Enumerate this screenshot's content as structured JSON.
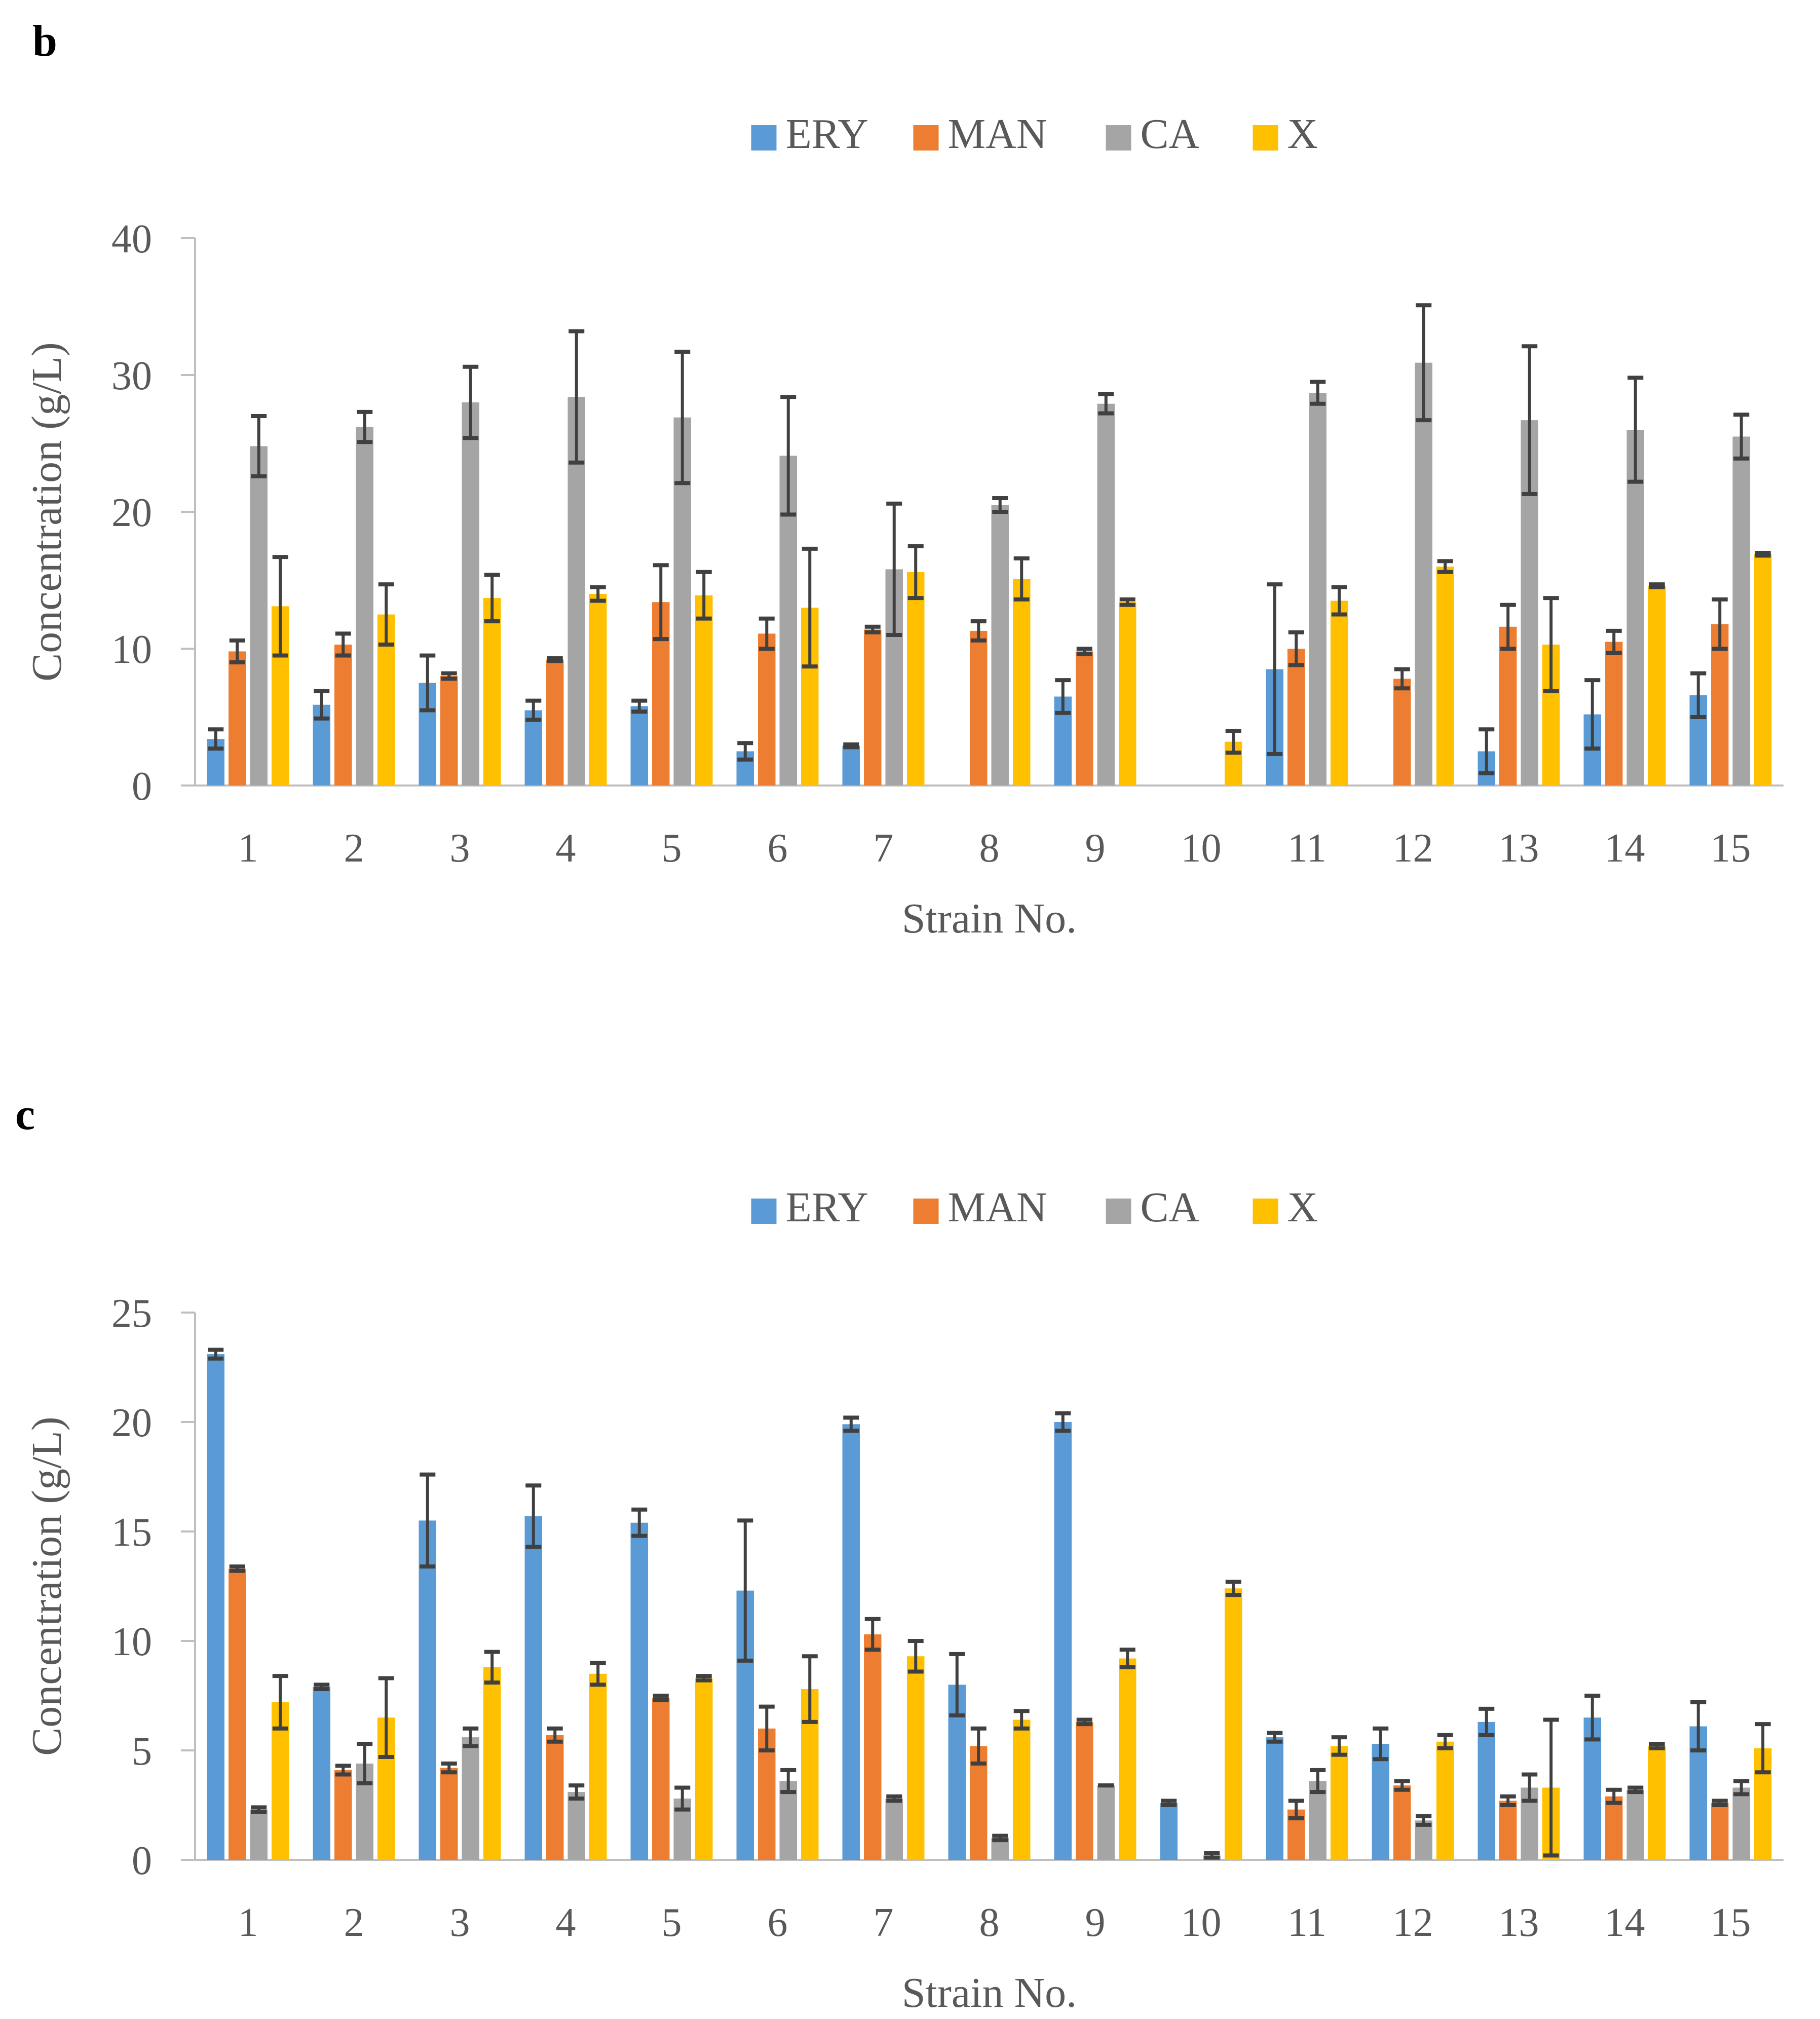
{
  "colors": {
    "ERY": "#5b9bd5",
    "MAN": "#ed7d31",
    "CA": "#a5a5a5",
    "X": "#ffc000",
    "axis": "#bfbfbf",
    "text": "#595959",
    "errorbar": "#404040"
  },
  "chart_data": [
    {
      "panel_label": "b",
      "type": "bar",
      "xlabel": "Strain No.",
      "ylabel": "Concentration (g/L)",
      "ylim": [
        0,
        40
      ],
      "yticks": [
        "0",
        "10",
        "20",
        "30",
        "40"
      ],
      "grid": false,
      "legend": "top-center",
      "categories": [
        "1",
        "2",
        "3",
        "4",
        "5",
        "6",
        "7",
        "8",
        "9",
        "10",
        "11",
        "12",
        "13",
        "14",
        "15"
      ],
      "series": [
        {
          "name": "ERY",
          "values": [
            3.4,
            5.9,
            7.5,
            5.5,
            5.8,
            2.5,
            2.9,
            0,
            6.5,
            0,
            8.5,
            0,
            2.5,
            5.2,
            6.6
          ],
          "errors": [
            0.7,
            1.0,
            2.0,
            0.7,
            0.4,
            0.6,
            0.1,
            0,
            1.2,
            0,
            6.2,
            0,
            1.6,
            2.5,
            1.6
          ]
        },
        {
          "name": "MAN",
          "values": [
            9.8,
            10.3,
            8.0,
            9.2,
            13.4,
            11.1,
            11.4,
            11.3,
            9.8,
            0,
            10.0,
            7.8,
            11.6,
            10.5,
            11.8
          ],
          "errors": [
            0.8,
            0.8,
            0.2,
            0.1,
            2.7,
            1.1,
            0.2,
            0.7,
            0.2,
            0,
            1.2,
            0.7,
            1.6,
            0.8,
            1.8
          ]
        },
        {
          "name": "CA",
          "values": [
            24.8,
            26.2,
            28.0,
            28.4,
            26.9,
            24.1,
            15.8,
            20.5,
            27.9,
            0,
            28.7,
            30.9,
            26.7,
            26.0,
            25.5
          ],
          "errors": [
            2.2,
            1.1,
            2.6,
            4.8,
            4.8,
            4.3,
            4.8,
            0.5,
            0.7,
            0,
            0.8,
            4.2,
            5.4,
            3.8,
            1.6
          ]
        },
        {
          "name": "X",
          "values": [
            13.1,
            12.5,
            13.7,
            14.0,
            13.9,
            13.0,
            15.6,
            15.1,
            13.4,
            3.2,
            13.5,
            16.0,
            10.3,
            14.6,
            16.9
          ],
          "errors": [
            3.6,
            2.2,
            1.7,
            0.5,
            1.7,
            4.3,
            1.9,
            1.5,
            0.2,
            0.8,
            1.0,
            0.4,
            3.4,
            0.1,
            0.1
          ]
        }
      ]
    },
    {
      "panel_label": "c",
      "type": "bar",
      "xlabel": "Strain No.",
      "ylabel": "Concentration (g/L)",
      "ylim": [
        0,
        25
      ],
      "yticks": [
        "0",
        "5",
        "10",
        "15",
        "20",
        "25"
      ],
      "grid": false,
      "legend": "top-center",
      "categories": [
        "1",
        "2",
        "3",
        "4",
        "5",
        "6",
        "7",
        "8",
        "9",
        "10",
        "11",
        "12",
        "13",
        "14",
        "15"
      ],
      "series": [
        {
          "name": "ERY",
          "values": [
            23.1,
            7.9,
            15.5,
            15.7,
            15.4,
            12.3,
            19.9,
            8.0,
            20.0,
            2.6,
            5.6,
            5.3,
            6.3,
            6.5,
            6.1
          ],
          "errors": [
            0.2,
            0.1,
            2.1,
            1.4,
            0.6,
            3.2,
            0.3,
            1.4,
            0.4,
            0.1,
            0.2,
            0.7,
            0.6,
            1.0,
            1.1
          ]
        },
        {
          "name": "MAN",
          "values": [
            13.3,
            4.1,
            4.2,
            5.7,
            7.4,
            6.0,
            10.3,
            5.2,
            6.3,
            0,
            2.3,
            3.4,
            2.7,
            2.9,
            2.6
          ],
          "errors": [
            0.1,
            0.2,
            0.2,
            0.3,
            0.1,
            1.0,
            0.7,
            0.8,
            0.1,
            0,
            0.4,
            0.2,
            0.2,
            0.3,
            0.1
          ]
        },
        {
          "name": "CA",
          "values": [
            2.3,
            4.4,
            5.6,
            3.1,
            2.8,
            3.6,
            2.8,
            1.0,
            3.4,
            0.2,
            3.6,
            1.8,
            3.3,
            3.2,
            3.3
          ],
          "errors": [
            0.1,
            0.9,
            0.4,
            0.3,
            0.5,
            0.5,
            0.1,
            0.1,
            0,
            0.1,
            0.5,
            0.2,
            0.6,
            0.1,
            0.3
          ]
        },
        {
          "name": "X",
          "values": [
            7.2,
            6.5,
            8.8,
            8.5,
            8.3,
            7.8,
            9.3,
            6.4,
            9.2,
            12.4,
            5.2,
            5.4,
            3.3,
            5.2,
            5.1
          ],
          "errors": [
            1.2,
            1.8,
            0.7,
            0.5,
            0.1,
            1.5,
            0.7,
            0.4,
            0.4,
            0.3,
            0.4,
            0.3,
            3.1,
            0.1,
            1.1
          ]
        }
      ]
    }
  ]
}
